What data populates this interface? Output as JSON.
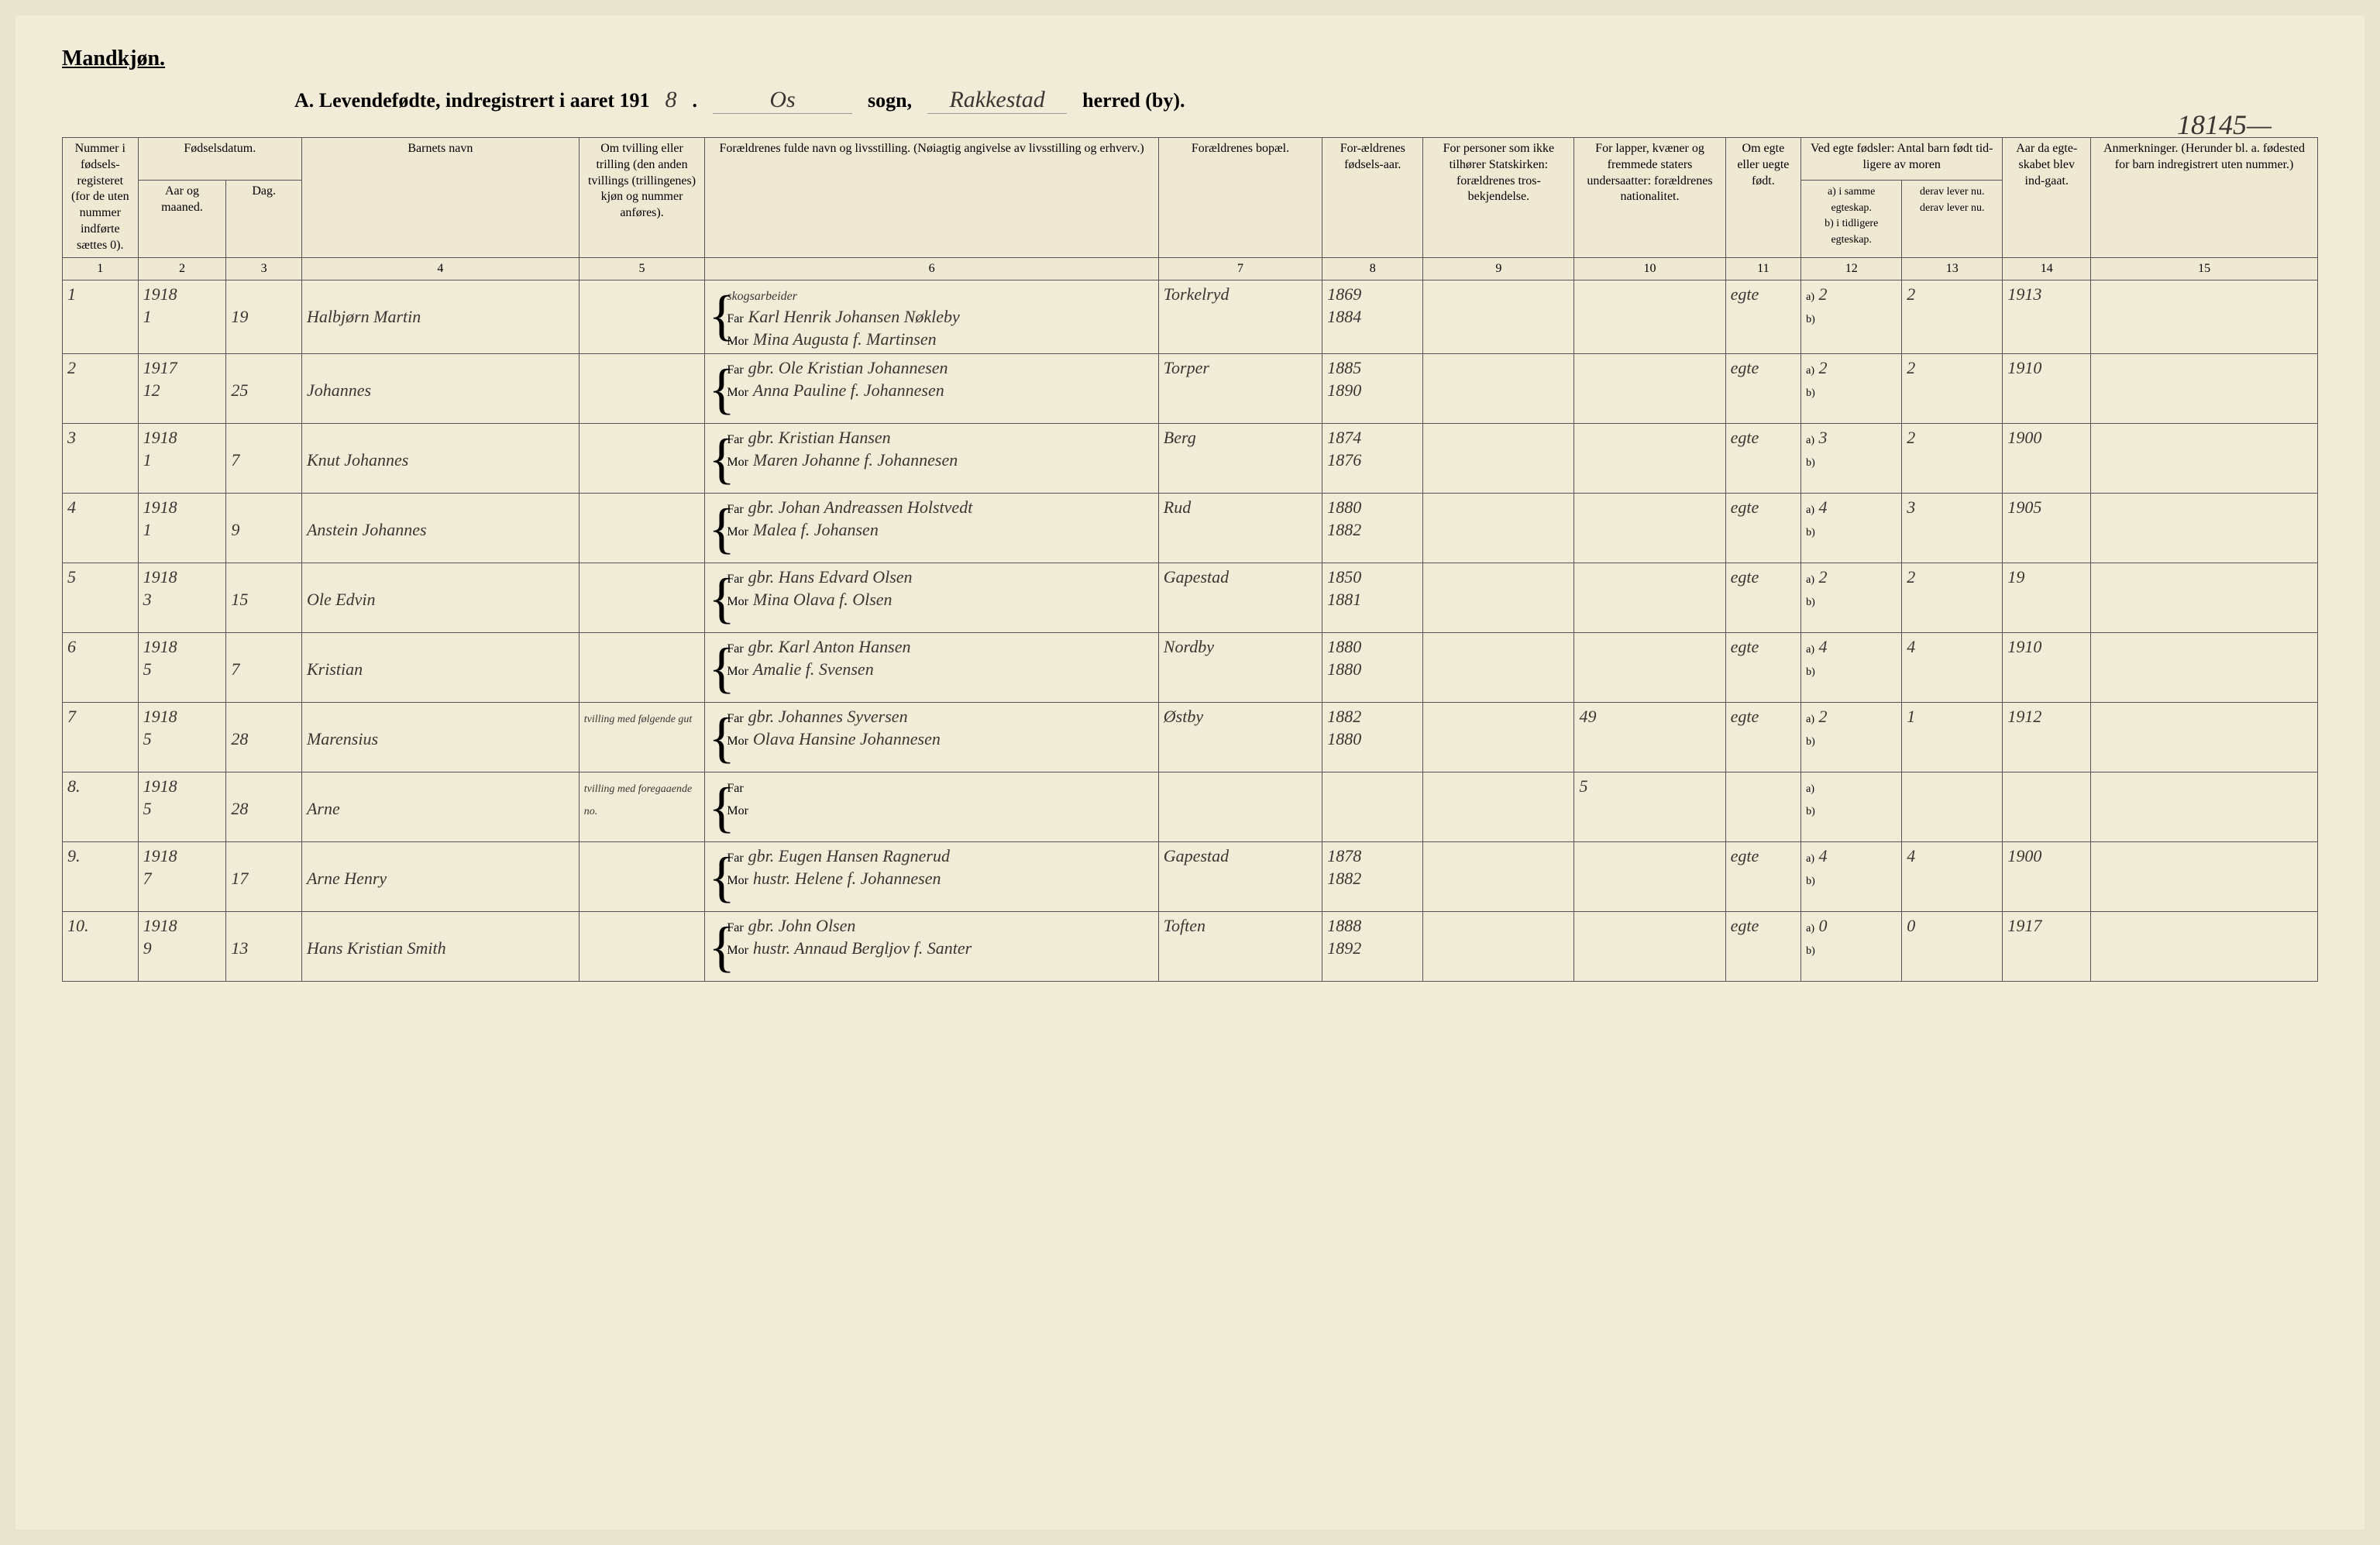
{
  "page": {
    "gender_label": "Mandkjøn.",
    "title_prefix": "A. Levendefødte, indregistrert i aaret 191",
    "year_suffix": "8",
    "sogn_value": "Os",
    "sogn_label": "sogn,",
    "herred_value": "Rakkestad",
    "herred_label": "herred (by).",
    "page_number": "18145—"
  },
  "headers": {
    "h1": "Nummer i fødsels-registeret (for de uten nummer indførte sættes 0).",
    "h2_top": "Fødselsdatum.",
    "h2a": "Aar og maaned.",
    "h2b": "Dag.",
    "h4": "Barnets navn",
    "h5": "Om tvilling eller trilling (den anden tvillings (trillingenes) kjøn og nummer anføres).",
    "h6": "Forældrenes fulde navn og livsstilling. (Nøiagtig angivelse av livsstilling og erhverv.)",
    "h7": "Forældrenes bopæl.",
    "h8": "For-ældrenes fødsels-aar.",
    "h9": "For personer som ikke tilhører Statskirken: forældrenes tros-bekjendelse.",
    "h10": "For lapper, kvæner og fremmede staters undersaatter: forældrenes nationalitet.",
    "h11": "Om egte eller uegte født.",
    "h12_top": "Ved egte fødsler: Antal barn født tid-ligere av moren",
    "h12a": "a) i samme egteskap.",
    "h12b": "b) i tidligere egteskap.",
    "h13a": "derav lever nu.",
    "h13b": "derav lever nu.",
    "h14": "Aar da egte-skabet blev ind-gaat.",
    "h15": "Anmerkninger. (Herunder bl. a. fødested for barn indregistrert uten nummer.)"
  },
  "col_numbers": [
    "1",
    "2",
    "3",
    "4",
    "5",
    "6",
    "7",
    "8",
    "9",
    "10",
    "11",
    "12",
    "13",
    "14",
    "15"
  ],
  "rows": [
    {
      "num": "1",
      "year": "1918",
      "month": "1",
      "day": "19",
      "name": "Halbjørn Martin",
      "twin": "",
      "occ_note": "skogsarbeider",
      "far": "Karl Henrik Johansen Nøkleby",
      "mor": "Mina Augusta f. Martinsen",
      "residence": "Torkelryd",
      "far_year": "1869",
      "mor_year": "1884",
      "col9": "",
      "col10": "",
      "egte": "egte",
      "a12": "2",
      "b12": "",
      "a13": "2",
      "b13": "",
      "marr_year": "1913",
      "notes": ""
    },
    {
      "num": "2",
      "year": "1917",
      "month": "12",
      "day": "25",
      "name": "Johannes",
      "twin": "",
      "occ_note": "",
      "far": "gbr. Ole Kristian Johannesen",
      "mor": "Anna Pauline f. Johannesen",
      "residence": "Torper",
      "far_year": "1885",
      "mor_year": "1890",
      "col9": "",
      "col10": "",
      "egte": "egte",
      "a12": "2",
      "b12": "",
      "a13": "2",
      "b13": "",
      "marr_year": "1910",
      "notes": ""
    },
    {
      "num": "3",
      "year": "1918",
      "month": "1",
      "day": "7",
      "name": "Knut Johannes",
      "twin": "",
      "occ_note": "",
      "far": "gbr. Kristian Hansen",
      "mor": "Maren Johanne f. Johannesen",
      "residence": "Berg",
      "far_year": "1874",
      "mor_year": "1876",
      "col9": "",
      "col10": "",
      "egte": "egte",
      "a12": "3",
      "b12": "",
      "a13": "2",
      "b13": "",
      "marr_year": "1900",
      "notes": ""
    },
    {
      "num": "4",
      "year": "1918",
      "month": "1",
      "day": "9",
      "name": "Anstein Johannes",
      "twin": "",
      "occ_note": "",
      "far": "gbr. Johan Andreassen Holstvedt",
      "mor": "Malea f. Johansen",
      "residence": "Rud",
      "far_year": "1880",
      "mor_year": "1882",
      "col9": "",
      "col10": "",
      "egte": "egte",
      "a12": "4",
      "b12": "",
      "a13": "3",
      "b13": "",
      "marr_year": "1905",
      "notes": ""
    },
    {
      "num": "5",
      "year": "1918",
      "month": "3",
      "day": "15",
      "name": "Ole Edvin",
      "twin": "",
      "occ_note": "",
      "far": "gbr. Hans Edvard Olsen",
      "mor": "Mina Olava f. Olsen",
      "residence": "Gapestad",
      "far_year": "1850",
      "mor_year": "1881",
      "col9": "",
      "col10": "",
      "egte": "egte",
      "a12": "2",
      "b12": "",
      "a13": "2",
      "b13": "",
      "marr_year": "19",
      "notes": ""
    },
    {
      "num": "6",
      "year": "1918",
      "month": "5",
      "day": "7",
      "name": "Kristian",
      "twin": "",
      "occ_note": "",
      "far": "gbr. Karl Anton Hansen",
      "mor": "Amalie f. Svensen",
      "residence": "Nordby",
      "far_year": "1880",
      "mor_year": "1880",
      "col9": "",
      "col10": "",
      "egte": "egte",
      "a12": "4",
      "b12": "",
      "a13": "4",
      "b13": "",
      "marr_year": "1910",
      "notes": ""
    },
    {
      "num": "7",
      "year": "1918",
      "month": "5",
      "day": "28",
      "name": "Marensius",
      "twin": "tvilling med følgende gut",
      "occ_note": "",
      "far": "gbr. Johannes Syversen",
      "mor": "Olava Hansine Johannesen",
      "residence": "Østby",
      "far_year": "1882",
      "mor_year": "1880",
      "col9": "",
      "col10": "49",
      "egte": "egte",
      "a12": "2",
      "b12": "",
      "a13": "1",
      "b13": "",
      "marr_year": "1912",
      "notes": ""
    },
    {
      "num": "8.",
      "year": "1918",
      "month": "5",
      "day": "28",
      "name": "Arne",
      "twin": "tvilling med foregaaende no.",
      "occ_note": "",
      "far": "",
      "mor": "",
      "residence": "",
      "far_year": "",
      "mor_year": "",
      "col9": "",
      "col10": "5",
      "egte": "",
      "a12": "",
      "b12": "",
      "a13": "",
      "b13": "",
      "marr_year": "",
      "notes": ""
    },
    {
      "num": "9.",
      "year": "1918",
      "month": "7",
      "day": "17",
      "name": "Arne Henry",
      "twin": "",
      "occ_note": "",
      "far": "gbr. Eugen Hansen Ragnerud",
      "mor": "hustr. Helene f. Johannesen",
      "residence": "Gapestad",
      "far_year": "1878",
      "mor_year": "1882",
      "col9": "",
      "col10": "",
      "egte": "egte",
      "a12": "4",
      "b12": "",
      "a13": "4",
      "b13": "",
      "marr_year": "1900",
      "notes": ""
    },
    {
      "num": "10.",
      "year": "1918",
      "month": "9",
      "day": "13",
      "name": "Hans Kristian Smith",
      "twin": "",
      "occ_note": "",
      "far": "gbr. John Olsen",
      "mor": "hustr. Annaud Bergljov f. Santer",
      "residence": "Toften",
      "far_year": "1888",
      "mor_year": "1892",
      "col9": "",
      "col10": "",
      "egte": "egte",
      "a12": "0",
      "b12": "",
      "a13": "0",
      "b13": "",
      "marr_year": "1917",
      "notes": ""
    }
  ],
  "labels": {
    "far": "Far",
    "mor": "Mor",
    "a": "a)",
    "b": "b)"
  }
}
